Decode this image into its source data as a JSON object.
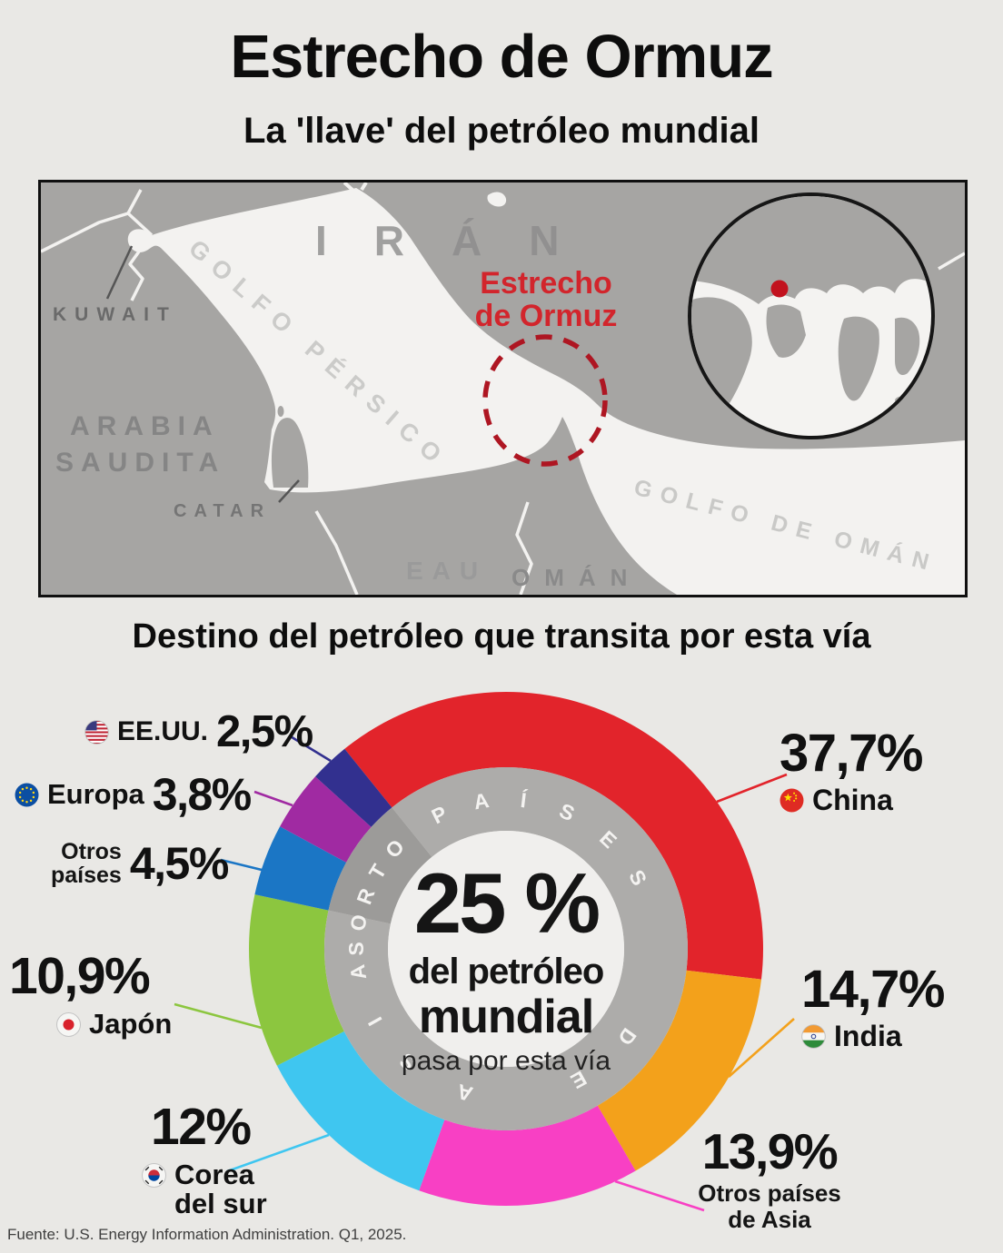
{
  "header": {
    "title": "Estrecho de Ormuz",
    "subtitle": "La 'llave' del petróleo mundial"
  },
  "map": {
    "labels": {
      "iran": "IRÁN",
      "kuwait": "KUWAIT",
      "arabia_1": "ARABIA",
      "arabia_2": "SAUDITA",
      "catar": "CATAR",
      "eau": "EAU",
      "oman": "OMÁN",
      "golfo_persico": "GOLFO PÉRSICO",
      "golfo_oman": "GOLFO DE OMÁN",
      "estrecho_1": "Estrecho",
      "estrecho_2": "de Ormuz"
    },
    "highlight_color": "#AE1622"
  },
  "section": {
    "title": "Destino del petróleo que transita por esta vía"
  },
  "chart_data": {
    "type": "pie",
    "subtype": "donut",
    "title": "Destino del petróleo que transita por esta vía",
    "start_angle_deg": -38.9,
    "center": {
      "value": "25 %",
      "line1": "del petróleo",
      "line2": "mundial",
      "line3": "pasa por esta vía"
    },
    "segments": [
      {
        "name": "China",
        "display": "37,7%",
        "value": 37.7,
        "color": "#E2242B",
        "flag": "china"
      },
      {
        "name": "India",
        "display": "14,7%",
        "value": 14.7,
        "color": "#F3A11B",
        "flag": "india"
      },
      {
        "name": "Otros países de Asia",
        "name_line1": "Otros países",
        "name_line2": "de Asia",
        "display": "13,9%",
        "value": 13.9,
        "color": "#F840C4",
        "flag": null
      },
      {
        "name": "Corea del sur",
        "name_line1": "Corea",
        "name_line2": "del sur",
        "display": "12%",
        "value": 12.0,
        "color": "#3FC6F0",
        "flag": "south-korea"
      },
      {
        "name": "Japón",
        "display": "10,9%",
        "value": 10.9,
        "color": "#8CC63F",
        "flag": "japan"
      },
      {
        "name": "Otros países",
        "name_line1": "Otros",
        "name_line2": "países",
        "display": "4,5%",
        "value": 4.5,
        "color": "#1B76C5",
        "flag": null
      },
      {
        "name": "Europa",
        "display": "3,8%",
        "value": 3.8,
        "color": "#A02AA2",
        "flag": "eu"
      },
      {
        "name": "EE.UU.",
        "display": "2,5%",
        "value": 2.5,
        "color": "#32308F",
        "flag": "us"
      }
    ],
    "ring": {
      "light": "#ADACAA",
      "dark": "#9C9B99",
      "inner_circle": "#F0EFED",
      "letter_color": "#F4F3F1",
      "words": [
        {
          "text": "PAÍSES",
          "angles": [
            -26.5,
            -9.5,
            6.7,
            24,
            43,
            61.6
          ]
        },
        {
          "text": "DE",
          "angles": [
            126,
            151
          ]
        },
        {
          "text": "ASIA",
          "angles": [
            196,
            221,
            241,
            261
          ]
        },
        {
          "text": "OTROS",
          "angles": [
            312,
            301,
            290.5,
            280,
            270
          ]
        }
      ]
    }
  },
  "footer": {
    "source": "Fuente: U.S. Energy Information Administration. Q1, 2025."
  }
}
